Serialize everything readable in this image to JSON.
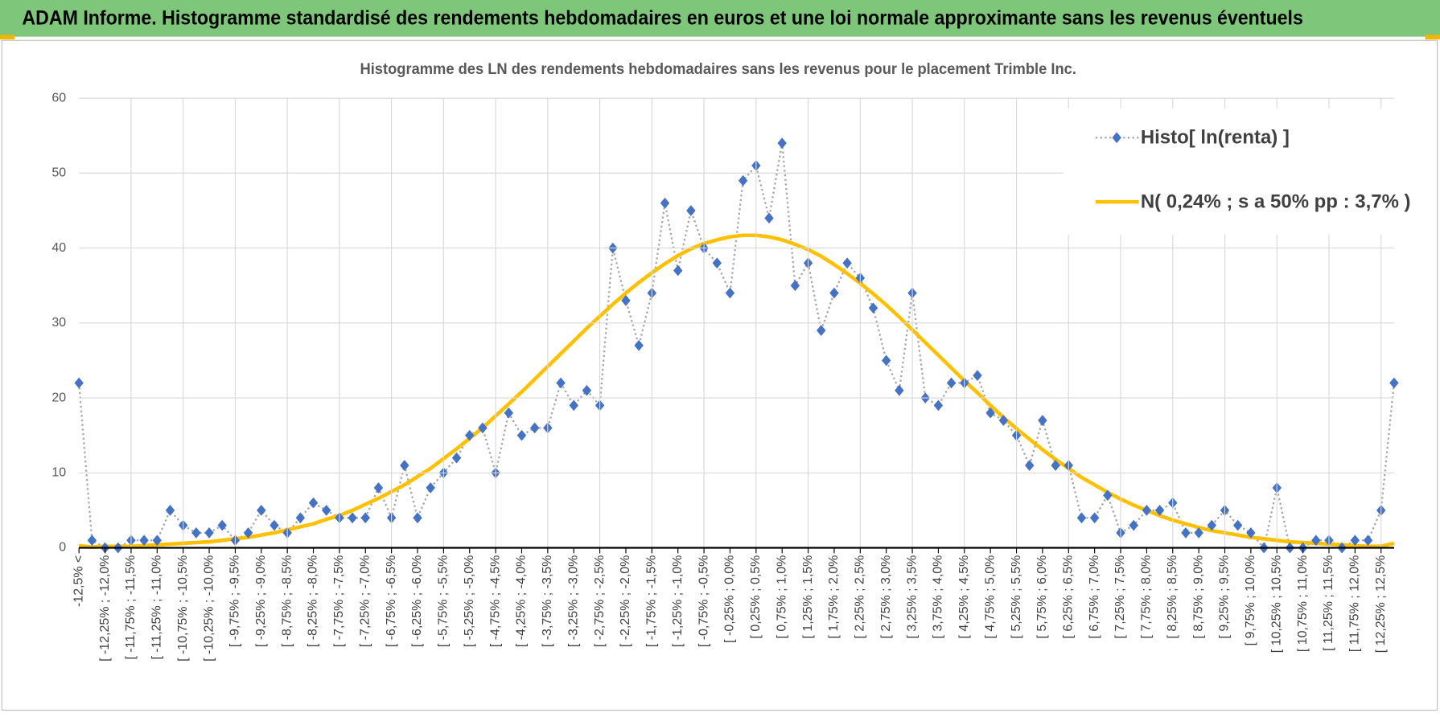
{
  "header_title": "ADAM Informe. Histogramme standardisé des rendements hebdomadaires en euros et une loi normale approximante sans les revenus éventuels",
  "chart_data": {
    "type": "line",
    "title": "Histogramme des LN des rendements hebdomadaires sans les revenus pour le placement Trimble Inc.",
    "categories": [
      "-12,5% <",
      null,
      "[ -12,25% ; -12,0%",
      null,
      "[ -11,75% ; -11,5%",
      null,
      "[ -11,25% ; -11,0%",
      null,
      "[ -10,75% ; -10,5%",
      null,
      "[ -10,25% ; -10,0%",
      null,
      "[ -9,75% ; -9,5%",
      null,
      "[ -9,25% ; -9,0%",
      null,
      "[ -8,75% ; -8,5%",
      null,
      "[ -8,25% ; -8,0%",
      null,
      "[ -7,75% ; -7,5%",
      null,
      "[ -7,25% ; -7,0%",
      null,
      "[ -6,75% ; -6,5%",
      null,
      "[ -6,25% ; -6,0%",
      null,
      "[ -5,75% ; -5,5%",
      null,
      "[ -5,25% ; -5,0%",
      null,
      "[ -4,75% ; -4,5%",
      null,
      "[ -4,25% ; -4,0%",
      null,
      "[ -3,75% ; -3,5%",
      null,
      "[ -3,25% ; -3,0%",
      null,
      "[ -2,75% ; -2,5%",
      null,
      "[ -2,25% ; -2,0%",
      null,
      "[ -1,75% ; -1,5%",
      null,
      "[ -1,25% ; -1,0%",
      null,
      "[ -0,75% ; -0,5%",
      null,
      "[ -0,25% ; 0,0%",
      null,
      "[ 0,25% ; 0,5%",
      null,
      "[ 0,75% ; 1,0%",
      null,
      "[ 1,25% ; 1,5%",
      null,
      "[ 1,75% ; 2,0%",
      null,
      "[ 2,25% ; 2,5%",
      null,
      "[ 2,75% ; 3,0%",
      null,
      "[ 3,25% ; 3,5%",
      null,
      "[ 3,75% ; 4,0%",
      null,
      "[ 4,25% ; 4,5%",
      null,
      "[ 4,75% ; 5,0%",
      null,
      "[ 5,25% ; 5,5%",
      null,
      "[ 5,75% ; 6,0%",
      null,
      "[ 6,25% ; 6,5%",
      null,
      "[ 6,75% ; 7,0%",
      null,
      "[ 7,25% ; 7,5%",
      null,
      "[ 7,75% ; 8,0%",
      null,
      "[ 8,25% ; 8,5%",
      null,
      "[ 8,75% ; 9,0%",
      null,
      "[ 9,25% ; 9,5%",
      null,
      "[ 9,75% ; 10,0%",
      null,
      "[ 10,25% ; 10,5%",
      null,
      "[ 10,75% ; 11,0%",
      null,
      "[ 11,25% ; 11,5%",
      null,
      "[ 11,75% ; 12,0%",
      null,
      "[ 12,25% ; 12,5%",
      null
    ],
    "series": [
      {
        "name": "Histo[ ln(renta) ]",
        "color": "#4472c4",
        "line_color": "#a5a5a5",
        "values": [
          22,
          1,
          0,
          0,
          1,
          1,
          1,
          5,
          3,
          2,
          2,
          3,
          1,
          2,
          5,
          3,
          2,
          4,
          6,
          5,
          4,
          4,
          4,
          8,
          4,
          11,
          4,
          8,
          10,
          12,
          15,
          16,
          10,
          18,
          15,
          16,
          16,
          22,
          19,
          21,
          19,
          40,
          33,
          27,
          34,
          46,
          37,
          45,
          40,
          38,
          34,
          49,
          51,
          44,
          54,
          35,
          38,
          29,
          34,
          38,
          36,
          32,
          25,
          21,
          34,
          20,
          19,
          22,
          22,
          23,
          18,
          17,
          15,
          11,
          17,
          11,
          11,
          4,
          4,
          7,
          2,
          3,
          5,
          5,
          6,
          2,
          2,
          3,
          5,
          3,
          2,
          0,
          8,
          0,
          0,
          1,
          1,
          0,
          1,
          1,
          5,
          22
        ]
      },
      {
        "name": "N( 0,24% ; s a 50% pp : 3,7% )",
        "color": "#ffc000",
        "values": [
          0.3,
          0.1,
          0.2,
          0.2,
          0.2,
          0.3,
          0.4,
          0.5,
          0.6,
          0.7,
          0.8,
          1.0,
          1.2,
          1.4,
          1.7,
          2.0,
          2.4,
          2.8,
          3.2,
          3.8,
          4.3,
          5.0,
          5.8,
          6.6,
          7.5,
          8.4,
          9.5,
          10.6,
          11.9,
          13.2,
          14.6,
          16.0,
          17.6,
          19.2,
          20.8,
          22.5,
          24.2,
          25.9,
          27.6,
          29.3,
          30.9,
          32.5,
          34.0,
          35.4,
          36.7,
          37.9,
          39.0,
          39.9,
          40.6,
          41.1,
          41.5,
          41.7,
          41.7,
          41.5,
          41.1,
          40.5,
          39.8,
          38.9,
          37.8,
          36.6,
          35.3,
          33.9,
          32.4,
          30.8,
          29.1,
          27.4,
          25.7,
          24.0,
          22.3,
          20.7,
          19.0,
          17.4,
          15.9,
          14.5,
          13.1,
          11.8,
          10.6,
          9.4,
          8.4,
          7.4,
          6.5,
          5.7,
          5.0,
          4.3,
          3.7,
          3.2,
          2.7,
          2.3,
          2.0,
          1.7,
          1.4,
          1.2,
          1.0,
          0.8,
          0.7,
          0.6,
          0.5,
          0.4,
          0.3,
          0.2,
          0.2,
          0.6
        ]
      }
    ],
    "ylim": [
      0,
      60
    ],
    "yticks": [
      0,
      10,
      20,
      30,
      40,
      50,
      60
    ],
    "grid": true,
    "legend": "top-right"
  }
}
